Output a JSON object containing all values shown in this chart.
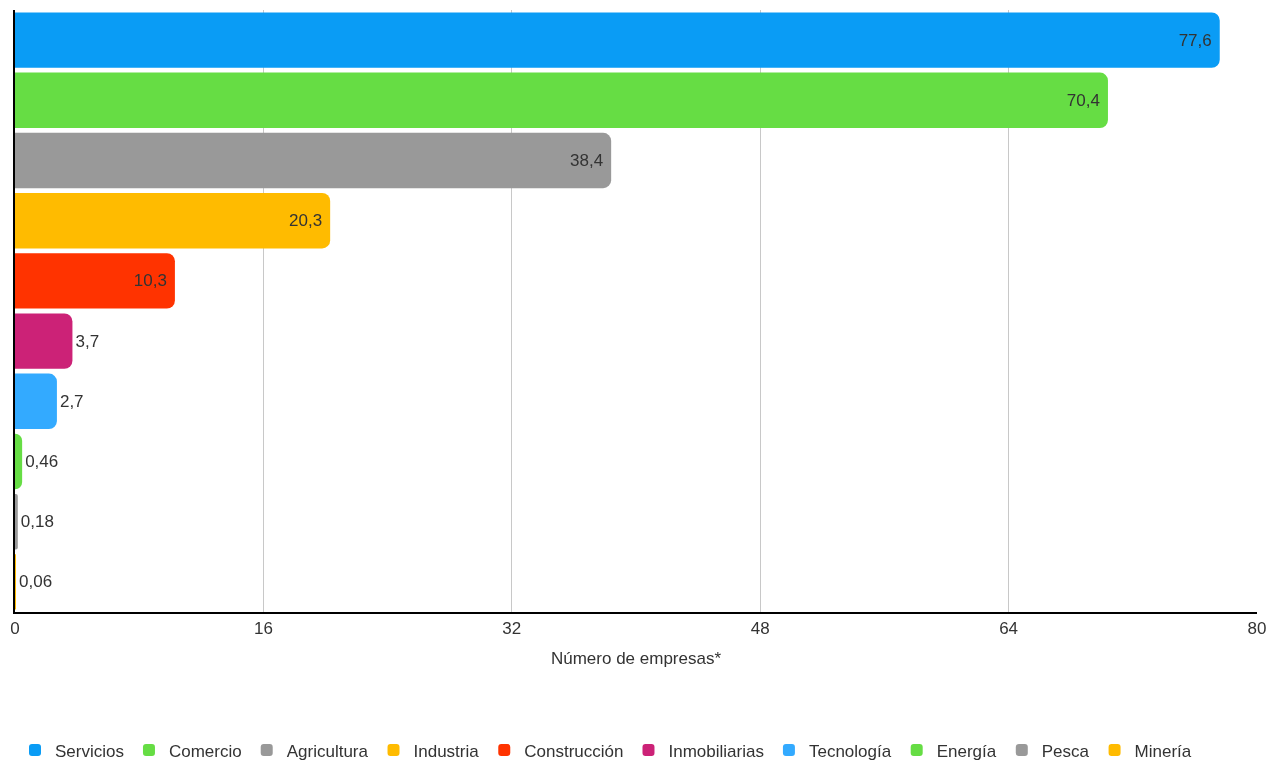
{
  "chart_data": {
    "type": "bar",
    "orientation": "horizontal",
    "xlabel": "Número de empresas*",
    "categories": [
      null,
      null,
      null,
      null,
      null,
      null,
      null,
      null,
      null,
      null
    ],
    "series": [
      {
        "name": "Servicios",
        "color": "#0a9cf5",
        "values": [
          77.6,
          null,
          null,
          null,
          null,
          null,
          null,
          null,
          null,
          null
        ],
        "value_labels": [
          "77,6",
          null,
          null,
          null,
          null,
          null,
          null,
          null,
          null,
          null
        ]
      },
      {
        "name": "Comercio",
        "color": "#66dd44",
        "values": [
          null,
          70.4,
          null,
          null,
          null,
          null,
          null,
          null,
          null,
          null
        ],
        "value_labels": [
          null,
          "70,4",
          null,
          null,
          null,
          null,
          null,
          null,
          null,
          null
        ]
      },
      {
        "name": "Agricultura",
        "color": "#999999",
        "values": [
          null,
          null,
          38.4,
          null,
          null,
          null,
          null,
          null,
          null,
          null
        ],
        "value_labels": [
          null,
          null,
          "38,4",
          null,
          null,
          null,
          null,
          null,
          null,
          null
        ]
      },
      {
        "name": "Industria",
        "color": "#ffbb00",
        "values": [
          null,
          null,
          null,
          20.3,
          null,
          null,
          null,
          null,
          null,
          null
        ],
        "value_labels": [
          null,
          null,
          null,
          "20,3",
          null,
          null,
          null,
          null,
          null,
          null
        ]
      },
      {
        "name": "Construcción",
        "color": "#ff3300",
        "values": [
          null,
          null,
          null,
          null,
          10.3,
          null,
          null,
          null,
          null,
          null
        ],
        "value_labels": [
          null,
          null,
          null,
          null,
          "10,3",
          null,
          null,
          null,
          null,
          null
        ]
      },
      {
        "name": "Inmobiliarias",
        "color": "#cc2277",
        "values": [
          null,
          null,
          null,
          null,
          null,
          3.7,
          null,
          null,
          null,
          null
        ],
        "value_labels": [
          null,
          null,
          null,
          null,
          null,
          "3,7",
          null,
          null,
          null,
          null
        ]
      },
      {
        "name": "Tecnología",
        "color": "#33aaff",
        "values": [
          null,
          null,
          null,
          null,
          null,
          null,
          2.7,
          null,
          null,
          null
        ],
        "value_labels": [
          null,
          null,
          null,
          null,
          null,
          null,
          "2,7",
          null,
          null,
          null
        ]
      },
      {
        "name": "Energía",
        "color": "#66dd44",
        "values": [
          null,
          null,
          null,
          null,
          null,
          null,
          null,
          0.46,
          null,
          null
        ],
        "value_labels": [
          null,
          null,
          null,
          null,
          null,
          null,
          null,
          "0,46",
          null,
          null
        ]
      },
      {
        "name": "Pesca",
        "color": "#999999",
        "values": [
          null,
          null,
          null,
          null,
          null,
          null,
          null,
          null,
          0.18,
          null
        ],
        "value_labels": [
          null,
          null,
          null,
          null,
          null,
          null,
          null,
          null,
          "0,18",
          null
        ]
      },
      {
        "name": "Minería",
        "color": "#ffbb00",
        "values": [
          null,
          null,
          null,
          null,
          null,
          null,
          null,
          null,
          null,
          0.06
        ],
        "value_labels": [
          null,
          null,
          null,
          null,
          null,
          null,
          null,
          null,
          null,
          "0,06"
        ]
      }
    ],
    "xlim": [
      0,
      80
    ],
    "xticks": [
      0,
      16,
      32,
      48,
      64,
      80
    ],
    "grid": "x",
    "legend": "bottom",
    "tick_labels": "x"
  }
}
